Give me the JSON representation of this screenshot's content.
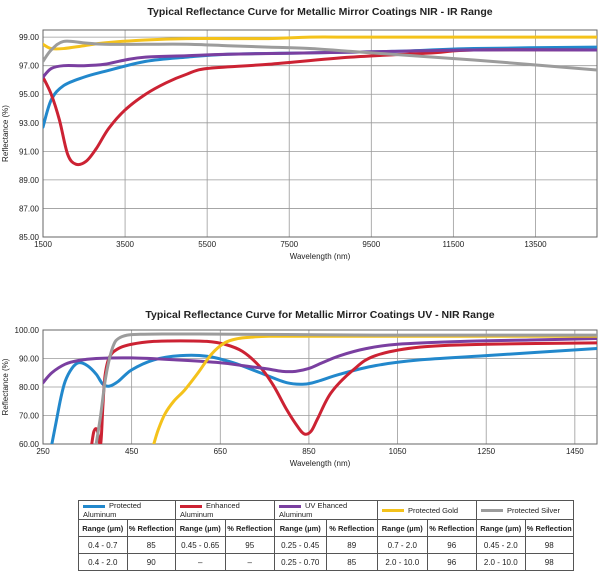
{
  "chart_data": [
    {
      "type": "line",
      "title": "Typical Reflectance Curve for Metallic Mirror Coatings NIR - IR Range",
      "xlabel": "Wavelength (nm)",
      "ylabel": "Reflectance (%)",
      "xlim": [
        1500,
        15000
      ],
      "ylim": [
        85,
        99.5
      ],
      "xticks": [
        1500,
        3500,
        5500,
        7500,
        9500,
        11500,
        13500
      ],
      "yticks": [
        "85.00",
        "87.00",
        "89.00",
        "91.00",
        "93.00",
        "95.00",
        "97.00",
        "99.00"
      ],
      "grid": true,
      "series": [
        {
          "name": "Protected Aluminum",
          "color": "#2288cc",
          "x": [
            1500,
            1700,
            2000,
            2500,
            3000,
            4000,
            5000,
            6000,
            8000,
            10000,
            12000,
            15000
          ],
          "y": [
            92.7,
            94.6,
            95.6,
            96.2,
            96.6,
            97.3,
            97.6,
            97.8,
            97.9,
            98.0,
            98.2,
            98.3
          ]
        },
        {
          "name": "Enhanced Aluminum",
          "color": "#cc2233",
          "x": [
            1500,
            1700,
            1900,
            2100,
            2300,
            2550,
            2800,
            3100,
            3500,
            4000,
            4500,
            5000,
            5500,
            7000,
            9000,
            11000,
            12000,
            15000
          ],
          "y": [
            96.2,
            95.0,
            93.2,
            90.8,
            90.1,
            90.3,
            91.2,
            92.6,
            93.9,
            95.0,
            95.8,
            96.4,
            96.8,
            97.1,
            97.6,
            97.9,
            98.1,
            98.1
          ]
        },
        {
          "name": "UV Ehanced Aluminum",
          "color": "#7a3fa0",
          "x": [
            1500,
            1700,
            2000,
            2500,
            3000,
            3500,
            4000,
            5000,
            6000,
            8000,
            10000,
            12000,
            15000
          ],
          "y": [
            96.2,
            96.8,
            97.0,
            97.0,
            97.1,
            97.4,
            97.6,
            97.7,
            97.8,
            97.9,
            98.0,
            98.1,
            98.1
          ]
        },
        {
          "name": "Protected Gold",
          "color": "#f4c21b",
          "x": [
            1500,
            1700,
            2000,
            2500,
            3000,
            4000,
            5000,
            6000,
            7000,
            8000,
            9000,
            10000,
            12000,
            15000
          ],
          "y": [
            98.5,
            98.2,
            98.2,
            98.4,
            98.6,
            98.8,
            98.9,
            98.9,
            98.9,
            99.0,
            99.0,
            99.0,
            99.0,
            99.0
          ]
        },
        {
          "name": "Protected Silver",
          "color": "#9c9c9c",
          "x": [
            1500,
            1700,
            2000,
            2500,
            3000,
            4000,
            5000,
            6000,
            7000,
            8000,
            9000,
            10000,
            12000,
            15000
          ],
          "y": [
            97.3,
            98.1,
            98.7,
            98.6,
            98.5,
            98.5,
            98.5,
            98.4,
            98.3,
            98.2,
            98.0,
            97.8,
            97.4,
            96.7
          ]
        }
      ]
    },
    {
      "type": "line",
      "title": "Typical Reflectance Curve for Metallic Mirror Coatings UV - NIR Range",
      "xlabel": "Wavelength (nm)",
      "ylabel": "Reflectance (%)",
      "xlim": [
        250,
        1500
      ],
      "ylim": [
        60,
        100
      ],
      "xticks": [
        250,
        450,
        650,
        850,
        1050,
        1250,
        1450
      ],
      "yticks": [
        "60.00",
        "70.00",
        "80.00",
        "90.00",
        "100.00"
      ],
      "grid": true,
      "series": [
        {
          "name": "Protected Aluminum",
          "color": "#2288cc",
          "x": [
            270,
            280,
            290,
            300,
            315,
            330,
            350,
            370,
            385,
            400,
            420,
            450,
            500,
            560,
            620,
            680,
            740,
            800,
            840,
            870,
            920,
            1000,
            1100,
            1250,
            1500
          ],
          "y": [
            60,
            68,
            76,
            82,
            86.5,
            88.5,
            87.5,
            84.5,
            81.0,
            80.3,
            82.0,
            86.0,
            89.5,
            91.0,
            90.8,
            88.5,
            85.0,
            81.5,
            81.0,
            82.0,
            84.5,
            87.5,
            89.5,
            91.0,
            93.5
          ]
        },
        {
          "name": "Enhanced Aluminum",
          "color": "#cc2233",
          "x": [
            360,
            365,
            372,
            380,
            385,
            390,
            400,
            420,
            450,
            500,
            560,
            620,
            660,
            700,
            740,
            770,
            800,
            825,
            840,
            855,
            870,
            900,
            950,
            1000,
            1100,
            1250,
            1500
          ],
          "y": [
            60,
            64.5,
            65.0,
            60,
            73,
            84,
            90.5,
            93.5,
            95.0,
            96.0,
            96.2,
            96.0,
            95.0,
            92.5,
            87.0,
            80.5,
            72.0,
            66.0,
            63.5,
            64.5,
            69.0,
            78.0,
            86.0,
            91.0,
            94.0,
            95.0,
            95.5
          ]
        },
        {
          "name": "UV Ehanced Aluminum",
          "color": "#7a3fa0",
          "x": [
            250,
            270,
            300,
            330,
            370,
            450,
            550,
            650,
            700,
            750,
            790,
            820,
            850,
            880,
            920,
            980,
            1050,
            1200,
            1350,
            1500
          ],
          "y": [
            81.5,
            85.0,
            88.0,
            89.3,
            90.0,
            90.2,
            89.5,
            88.5,
            87.5,
            86.5,
            85.5,
            85.5,
            86.5,
            88.5,
            91.0,
            93.5,
            95.0,
            96.0,
            96.5,
            97.0
          ]
        },
        {
          "name": "Protected Gold",
          "color": "#f4c21b",
          "x": [
            500,
            510,
            525,
            545,
            570,
            600,
            630,
            660,
            690,
            720,
            760,
            850,
            1000,
            1200,
            1500
          ],
          "y": [
            60,
            65.0,
            70.5,
            75.0,
            79.0,
            85.0,
            91.5,
            95.5,
            97.0,
            97.5,
            97.8,
            97.8,
            97.8,
            97.8,
            97.8
          ]
        },
        {
          "name": "Protected Silver",
          "color": "#9c9c9c",
          "x": [
            370,
            380,
            390,
            400,
            410,
            420,
            440,
            470,
            520,
            600,
            800,
            1000,
            1200,
            1500
          ],
          "y": [
            60,
            70.0,
            82.0,
            90.0,
            95.0,
            97.0,
            98.2,
            98.5,
            98.6,
            98.6,
            98.4,
            98.2,
            98.2,
            98.2
          ]
        }
      ]
    }
  ],
  "legend_table": {
    "coatings": [
      {
        "name": "Protected Aluminum",
        "color": "#2288cc",
        "header_range": "Range (µm)",
        "header_reflection": "% Reflection",
        "rows": [
          [
            "0.4 - 0.7",
            "85"
          ],
          [
            "0.4 - 2.0",
            "90"
          ]
        ]
      },
      {
        "name": "Enhanced Aluminum",
        "color": "#cc2233",
        "header_range": "Range (µm)",
        "header_reflection": "% Reflection",
        "rows": [
          [
            "0.45 - 0.65",
            "95"
          ],
          [
            "–",
            "–"
          ]
        ]
      },
      {
        "name": "UV Ehanced Aluminum",
        "color": "#7a3fa0",
        "header_range": "Range (µm)",
        "header_reflection": "% Reflection",
        "rows": [
          [
            "0.25 - 0.45",
            "89"
          ],
          [
            "0.25 - 0.70",
            "85"
          ]
        ]
      },
      {
        "name": "Protected Gold",
        "color": "#f4c21b",
        "header_range": "Range (µm)",
        "header_reflection": "% Reflection",
        "rows": [
          [
            "0.7 - 2.0",
            "96"
          ],
          [
            "2.0 - 10.0",
            "96"
          ]
        ]
      },
      {
        "name": "Protected Silver",
        "color": "#9c9c9c",
        "header_range": "Range (µm)",
        "header_reflection": "% Reflection",
        "rows": [
          [
            "0.45 - 2.0",
            "98"
          ],
          [
            "2.0 - 10.0",
            "98"
          ]
        ]
      }
    ]
  }
}
